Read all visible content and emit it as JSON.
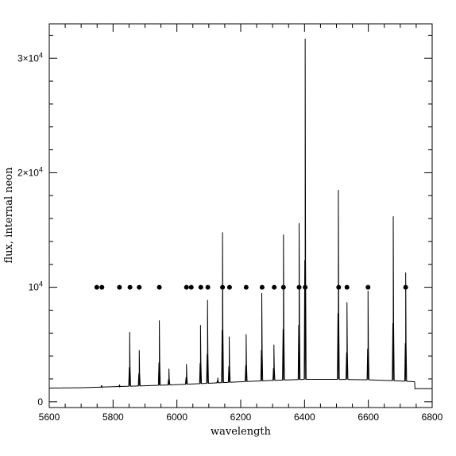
{
  "chart_data": {
    "type": "line",
    "xlabel": "wavelength",
    "ylabel": "flux, internal neon",
    "xlim": [
      5600,
      6800
    ],
    "ylim": [
      -500,
      33000
    ],
    "x_ticks": [
      5600,
      5800,
      6000,
      6200,
      6400,
      6600,
      6800
    ],
    "y_ticks": [
      {
        "value": 0,
        "label": "0",
        "exp": ""
      },
      {
        "value": 10000,
        "label": "10",
        "exp": "4"
      },
      {
        "value": 20000,
        "label": "2×10",
        "exp": "4"
      },
      {
        "value": 30000,
        "label": "3×10",
        "exp": "4"
      }
    ],
    "baseline": [
      [
        5600,
        1200
      ],
      [
        5700,
        1230
      ],
      [
        5760,
        1280
      ],
      [
        5800,
        1320
      ],
      [
        5900,
        1400
      ],
      [
        6000,
        1500
      ],
      [
        6100,
        1620
      ],
      [
        6200,
        1750
      ],
      [
        6300,
        1870
      ],
      [
        6400,
        1960
      ],
      [
        6500,
        1960
      ],
      [
        6600,
        1920
      ],
      [
        6700,
        1820
      ],
      [
        6745,
        1750
      ],
      [
        6746,
        1150
      ],
      [
        6800,
        1150
      ]
    ],
    "peaks": [
      {
        "x": 5764,
        "y": 1450
      },
      {
        "x": 5820,
        "y": 1500
      },
      {
        "x": 5852,
        "y": 6100
      },
      {
        "x": 5882,
        "y": 4500
      },
      {
        "x": 5945,
        "y": 7100
      },
      {
        "x": 5975,
        "y": 2900
      },
      {
        "x": 6030,
        "y": 3300
      },
      {
        "x": 6074,
        "y": 6700
      },
      {
        "x": 6096,
        "y": 8900
      },
      {
        "x": 6128,
        "y": 2100
      },
      {
        "x": 6143,
        "y": 14800
      },
      {
        "x": 6164,
        "y": 5700
      },
      {
        "x": 6217,
        "y": 5900
      },
      {
        "x": 6266,
        "y": 9500
      },
      {
        "x": 6304,
        "y": 5000
      },
      {
        "x": 6334,
        "y": 14600
      },
      {
        "x": 6383,
        "y": 15600
      },
      {
        "x": 6402,
        "y": 31700
      },
      {
        "x": 6506,
        "y": 18500
      },
      {
        "x": 6533,
        "y": 8700
      },
      {
        "x": 6599,
        "y": 9700
      },
      {
        "x": 6678,
        "y": 16200
      },
      {
        "x": 6717,
        "y": 11300
      }
    ],
    "marker_y": 10000,
    "markers": [
      5749,
      5765,
      5820,
      5853,
      5882,
      5945,
      6030,
      6045,
      6075,
      6097,
      6143,
      6165,
      6217,
      6267,
      6305,
      6334,
      6383,
      6402,
      6507,
      6533,
      6599,
      6717
    ]
  }
}
